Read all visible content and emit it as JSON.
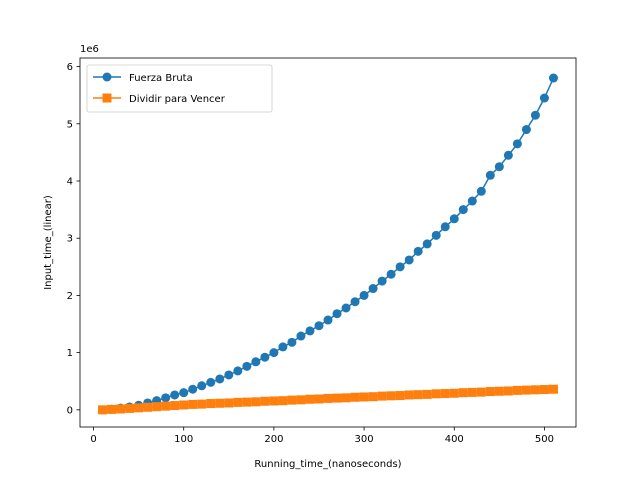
{
  "chart_data": {
    "type": "line",
    "title": "",
    "xlabel": "Running_time_(nanoseconds)",
    "ylabel": "Input_time_(linear)",
    "y_offset_label": "1e6",
    "xlim": [
      -15,
      535
    ],
    "ylim": [
      -300000,
      6150000
    ],
    "x_ticks": [
      0,
      100,
      200,
      300,
      400,
      500
    ],
    "y_ticks": [
      0,
      1000000,
      2000000,
      3000000,
      4000000,
      5000000,
      6000000
    ],
    "y_tick_labels": [
      "0",
      "1",
      "2",
      "3",
      "4",
      "5",
      "6"
    ],
    "grid": false,
    "legend_position": "top-left",
    "x": [
      10,
      20,
      30,
      40,
      50,
      60,
      70,
      80,
      90,
      100,
      110,
      120,
      130,
      140,
      150,
      160,
      170,
      180,
      190,
      200,
      210,
      220,
      230,
      240,
      250,
      260,
      270,
      280,
      290,
      300,
      310,
      320,
      330,
      340,
      350,
      360,
      370,
      380,
      390,
      400,
      410,
      420,
      430,
      440,
      450,
      460,
      470,
      480,
      490,
      500,
      510
    ],
    "series": [
      {
        "name": "Fuerza Bruta",
        "color": "#1f77b4",
        "marker": "circle",
        "values": [
          0,
          10000,
          30000,
          50000,
          80000,
          120000,
          160000,
          210000,
          260000,
          300000,
          360000,
          420000,
          480000,
          540000,
          610000,
          680000,
          760000,
          840000,
          920000,
          1000000,
          1100000,
          1180000,
          1290000,
          1380000,
          1470000,
          1570000,
          1680000,
          1780000,
          1890000,
          2000000,
          2120000,
          2250000,
          2370000,
          2500000,
          2620000,
          2770000,
          2900000,
          3050000,
          3200000,
          3340000,
          3500000,
          3650000,
          3820000,
          4100000,
          4250000,
          4450000,
          4650000,
          4900000,
          5150000,
          5450000,
          5800000
        ]
      },
      {
        "name": "Dividir para Vencer",
        "color": "#ff7f0e",
        "marker": "square",
        "values": [
          0,
          8000,
          15000,
          25000,
          35000,
          45000,
          55000,
          65000,
          75000,
          85000,
          95000,
          100000,
          110000,
          115000,
          120000,
          130000,
          135000,
          140000,
          150000,
          155000,
          160000,
          170000,
          175000,
          185000,
          190000,
          200000,
          205000,
          210000,
          220000,
          225000,
          230000,
          240000,
          245000,
          250000,
          260000,
          265000,
          270000,
          280000,
          285000,
          290000,
          300000,
          305000,
          310000,
          320000,
          325000,
          330000,
          340000,
          345000,
          350000,
          355000,
          360000
        ]
      }
    ]
  }
}
